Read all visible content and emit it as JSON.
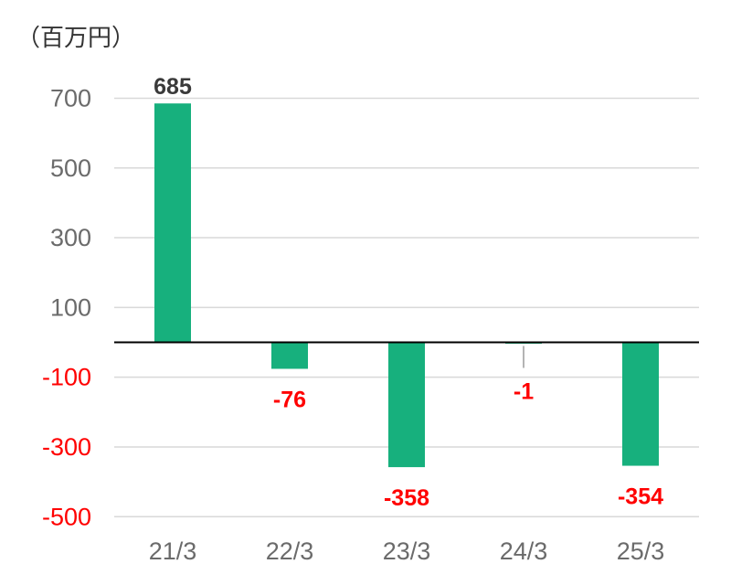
{
  "chart_data": {
    "type": "bar",
    "unit_label": "（百万円）",
    "categories": [
      "21/3",
      "22/3",
      "23/3",
      "24/3",
      "25/3"
    ],
    "values": [
      685,
      -76,
      -358,
      -1,
      -354
    ],
    "data_labels": [
      "685",
      "-76",
      "-358",
      "-1",
      "-354"
    ],
    "yticks": [
      700,
      500,
      300,
      100,
      -100,
      -300,
      -500
    ],
    "ytick_labels": [
      "700",
      "500",
      "300",
      "100",
      "-100",
      "-300",
      "-500"
    ],
    "ylim": [
      -500,
      700
    ],
    "grid": true,
    "legend": "none",
    "colors": {
      "bar": "#17b07d",
      "positive_label": "#3a3a3a",
      "negative_label": "#ff0000",
      "positive_tick": "#6b6b6b",
      "negative_tick": "#ff0000",
      "grid": "#d9d9d9",
      "zero_line": "#000000",
      "leader_line": "#9a9a9a"
    }
  }
}
